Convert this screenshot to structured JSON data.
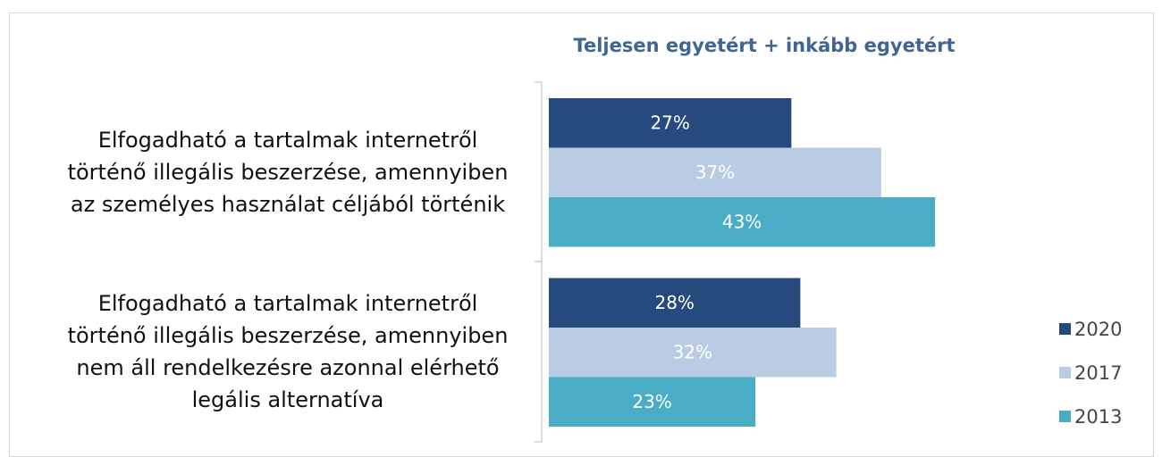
{
  "chart_data": {
    "type": "bar",
    "orientation": "horizontal",
    "title": "Teljesen egyetért + inkább egyetért",
    "categories": [
      "Elfogadható a tartalmak internetről\ntörténő illegális beszerzése, amennyiben\naz személyes használat céljából történik",
      "Elfogadható a tartalmak internetről\ntörténő illegális beszerzése, amennyiben\nnem áll rendelkezésre azonnal elérhető\nlegális alternatíva"
    ],
    "series": [
      {
        "name": "2020",
        "color": "#264a7e",
        "values": [
          27,
          28
        ],
        "value_labels": [
          "27%",
          "28%"
        ]
      },
      {
        "name": "2017",
        "color": "#b9cce4",
        "values": [
          37,
          32
        ],
        "value_labels": [
          "37%",
          "32%"
        ]
      },
      {
        "name": "2013",
        "color": "#4bacc6",
        "values": [
          43,
          23
        ],
        "value_labels": [
          "43%",
          "23%"
        ]
      }
    ],
    "legend": "right"
  }
}
